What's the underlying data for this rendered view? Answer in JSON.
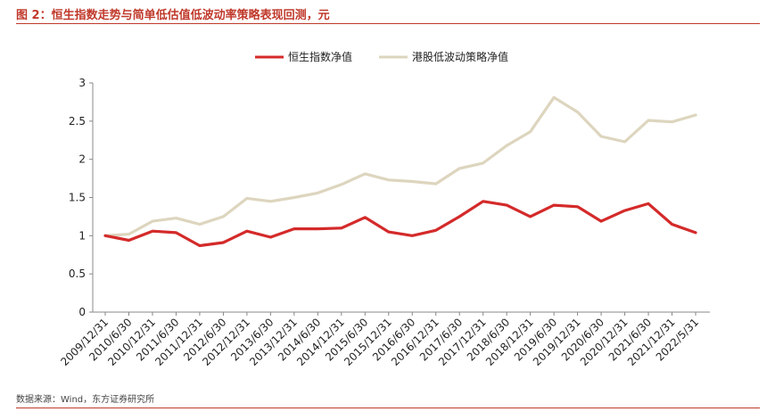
{
  "header": {
    "title": "图 2：恒生指数走势与简单低估值低波动率策略表现回测，元"
  },
  "footer": {
    "source": "数据来源：Wind，东方证券研究所"
  },
  "chart_data": {
    "type": "line",
    "title": "",
    "xlabel": "",
    "ylabel": "",
    "ylim": [
      0,
      3
    ],
    "yticks": [
      "0",
      "0.5",
      "1",
      "1.5",
      "2",
      "2.5",
      "3"
    ],
    "grid": false,
    "legend_position": "top-center",
    "x_tick_labels": [
      "2009/12/31",
      "2010/6/30",
      "2010/12/31",
      "2011/6/30",
      "2011/12/31",
      "2012/6/30",
      "2012/12/31",
      "2013/6/30",
      "2013/12/31",
      "2014/6/30",
      "2014/12/31",
      "2015/6/30",
      "2015/12/31",
      "2016/6/30",
      "2016/12/31",
      "2017/6/30",
      "2017/12/31",
      "2018/6/30",
      "2018/12/31",
      "2019/6/30",
      "2019/12/31",
      "2020/6/30",
      "2020/12/31",
      "2021/6/30",
      "2021/12/31",
      "2022/5/31"
    ],
    "series": [
      {
        "name": "恒生指数净值",
        "color": "#d42a2a",
        "values": [
          1.0,
          0.94,
          1.06,
          1.04,
          0.87,
          0.91,
          1.06,
          0.98,
          1.09,
          1.09,
          1.1,
          1.24,
          1.05,
          1.0,
          1.07,
          1.25,
          1.45,
          1.4,
          1.25,
          1.4,
          1.38,
          1.19,
          1.33,
          1.42,
          1.15,
          1.04
        ]
      },
      {
        "name": "港股低波动策略净值",
        "color": "#ddd5be",
        "values": [
          1.0,
          1.02,
          1.19,
          1.23,
          1.15,
          1.25,
          1.49,
          1.45,
          1.5,
          1.56,
          1.67,
          1.81,
          1.73,
          1.71,
          1.68,
          1.88,
          1.95,
          2.18,
          2.36,
          2.81,
          2.62,
          2.3,
          2.23,
          2.51,
          2.49,
          2.58
        ]
      }
    ]
  }
}
